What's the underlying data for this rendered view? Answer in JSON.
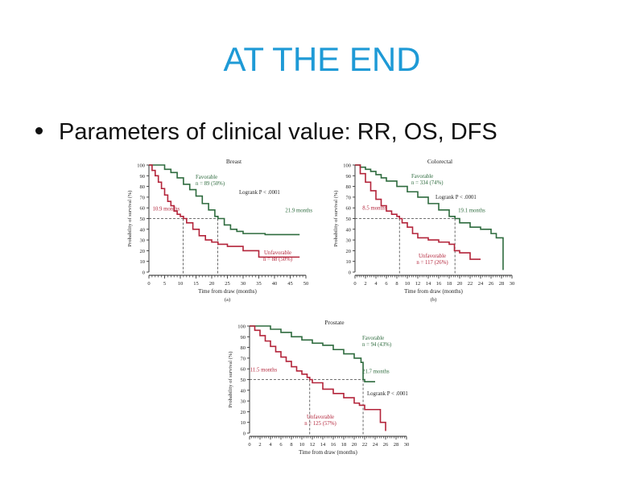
{
  "slide": {
    "title": "AT THE END",
    "bullet": "Parameters of clinical value: RR, OS, DFS"
  },
  "colors": {
    "title": "#1e9ad6",
    "favorable": "#2e6b3e",
    "unfavorable": "#b3243a"
  },
  "chart_data": [
    {
      "type": "line",
      "title": "Breast",
      "caption": "(a)",
      "xlabel": "Time from draw (months)",
      "ylabel": "Probability of survival (%)",
      "xlim": [
        0,
        50
      ],
      "ylim": [
        0,
        100
      ],
      "xticks": [
        0,
        5,
        10,
        15,
        20,
        25,
        30,
        35,
        40,
        45,
        50
      ],
      "yticks": [
        0,
        10,
        20,
        30,
        40,
        50,
        60,
        70,
        80,
        90,
        100
      ],
      "logrank": "Logrank P < .0001",
      "series": [
        {
          "name": "Favorable",
          "n_label": "n = 89 (50%)",
          "median_label": "21.9 months",
          "median": 21.9,
          "x": [
            0,
            3,
            5,
            7,
            9,
            11,
            13,
            15,
            17,
            19,
            21,
            22,
            24,
            26,
            28,
            30,
            33,
            37,
            48
          ],
          "y": [
            100,
            100,
            96,
            93,
            88,
            82,
            77,
            71,
            64,
            58,
            52,
            50,
            44,
            40,
            38,
            36,
            36,
            35,
            35
          ]
        },
        {
          "name": "Unfavorable",
          "n_label": "n = 88 (50%)",
          "median_label": "10.9 months",
          "median": 10.9,
          "x": [
            0,
            1,
            2,
            3,
            4,
            5,
            6,
            7,
            8,
            9,
            10,
            11,
            12,
            14,
            16,
            18,
            20,
            22,
            25,
            30,
            35,
            48
          ],
          "y": [
            100,
            95,
            90,
            84,
            78,
            72,
            66,
            62,
            57,
            54,
            52,
            50,
            46,
            40,
            34,
            30,
            28,
            26,
            24,
            20,
            14,
            14
          ]
        }
      ]
    },
    {
      "type": "line",
      "title": "Colorectal",
      "caption": "(b)",
      "xlabel": "Time from draw (months)",
      "ylabel": "Probability of survival (%)",
      "xlim": [
        0,
        30
      ],
      "ylim": [
        0,
        100
      ],
      "xticks": [
        0,
        2,
        4,
        6,
        8,
        10,
        12,
        14,
        16,
        18,
        20,
        22,
        24,
        26,
        28,
        30
      ],
      "yticks": [
        0,
        10,
        20,
        30,
        40,
        50,
        60,
        70,
        80,
        90,
        100
      ],
      "logrank": "Logrank P < .0001",
      "series": [
        {
          "name": "Favorable",
          "n_label": "n = 334 (74%)",
          "median_label": "19.1 months",
          "median": 19.1,
          "x": [
            0,
            1,
            2,
            3,
            4,
            5,
            6,
            8,
            10,
            12,
            14,
            16,
            18,
            19.1,
            20,
            22,
            24,
            26,
            27,
            28,
            28.3
          ],
          "y": [
            100,
            98,
            96,
            94,
            91,
            88,
            85,
            80,
            75,
            70,
            64,
            58,
            52,
            50,
            46,
            42,
            40,
            36,
            32,
            32,
            2
          ]
        },
        {
          "name": "Unfavorable",
          "n_label": "n = 117 (26%)",
          "median_label": "8.5 months",
          "median": 8.5,
          "x": [
            0,
            1,
            2,
            3,
            4,
            5,
            6,
            7,
            8,
            8.5,
            9,
            10,
            11,
            12,
            14,
            16,
            18,
            19,
            20,
            22,
            24
          ],
          "y": [
            100,
            92,
            84,
            76,
            68,
            62,
            57,
            54,
            52,
            50,
            46,
            42,
            36,
            32,
            30,
            28,
            26,
            20,
            18,
            12,
            12
          ]
        }
      ]
    },
    {
      "type": "line",
      "title": "Prostate",
      "caption": "",
      "xlabel": "Time from draw (months)",
      "ylabel": "Probability of survival (%)",
      "xlim": [
        0,
        30
      ],
      "ylim": [
        0,
        100
      ],
      "xticks": [
        0,
        2,
        4,
        6,
        8,
        10,
        12,
        14,
        16,
        18,
        20,
        22,
        24,
        26,
        28,
        30
      ],
      "yticks": [
        0,
        10,
        20,
        30,
        40,
        50,
        60,
        70,
        80,
        90,
        100
      ],
      "logrank": "Logrank P < .0001",
      "series": [
        {
          "name": "Favorable",
          "n_label": "n = 94 (43%)",
          "median_label": "21.7 months",
          "median": 21.7,
          "x": [
            0,
            2,
            4,
            6,
            8,
            10,
            12,
            14,
            16,
            18,
            20,
            21.3,
            21.7,
            22,
            24
          ],
          "y": [
            100,
            100,
            97,
            94,
            90,
            87,
            84,
            82,
            78,
            74,
            70,
            66,
            50,
            48,
            48
          ]
        },
        {
          "name": "Unfavorable",
          "n_label": "n = 125 (57%)",
          "median_label": "11.5 months",
          "median": 11.5,
          "x": [
            0,
            1,
            2,
            3,
            4,
            5,
            6,
            7,
            8,
            9,
            10,
            11,
            11.5,
            12,
            14,
            16,
            18,
            20,
            21,
            22,
            24,
            25,
            26
          ],
          "y": [
            100,
            96,
            91,
            86,
            81,
            76,
            71,
            67,
            62,
            58,
            55,
            52,
            50,
            47,
            41,
            37,
            33,
            28,
            26,
            22,
            22,
            10,
            2
          ]
        }
      ]
    }
  ]
}
